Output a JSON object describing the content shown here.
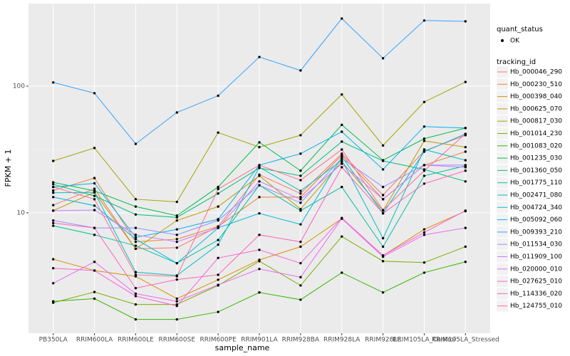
{
  "chart_data": {
    "type": "line",
    "log_y": true,
    "grid": true,
    "xlabel": "sample_name",
    "ylabel": "FPKM + 1",
    "categories": [
      "PB350LA",
      "RRIM600LA",
      "RRIM600LE",
      "RRIM600SE",
      "RRIM600PE",
      "RRIM901LA",
      "RRIM928BA",
      "RRIM928LA",
      "RRIM928LE",
      "RRIM105LA_Control",
      "RRIM105LA_Stressed"
    ],
    "ylim": [
      1.12,
      449
    ],
    "yticks": [
      10,
      100
    ],
    "point_legend_title": "quant_status",
    "point_legend_label": "OK",
    "point_color": "#000000",
    "legend_title": "tracking_id",
    "series": [
      {
        "name": "Hb_000046_290",
        "color": "#F8766D",
        "values": [
          11.5,
          15.5,
          5.2,
          5.3,
          7.8,
          20,
          14.2,
          29.3,
          13.8,
          30.8,
          41
        ]
      },
      {
        "name": "Hb_000230_510",
        "color": "#EA8331",
        "values": [
          15,
          18.8,
          5.9,
          6.2,
          7.8,
          13.3,
          13.3,
          28.5,
          12.8,
          23.8,
          30.4
        ]
      },
      {
        "name": "Hb_000398_040",
        "color": "#D89000",
        "values": [
          4.3,
          3.5,
          3.15,
          2.1,
          2.96,
          4.25,
          5.4,
          9.0,
          4.6,
          7.4,
          10.3
        ]
      },
      {
        "name": "Hb_000625_070",
        "color": "#C09B00",
        "values": [
          10.4,
          14.5,
          5.2,
          8.7,
          11.2,
          19.6,
          10.7,
          25.4,
          10.4,
          37,
          33
        ]
      },
      {
        "name": "Hb_000817_030",
        "color": "#A3A500",
        "values": [
          25.7,
          32.5,
          12.8,
          12.2,
          43,
          33,
          41,
          86,
          34,
          75,
          108
        ]
      },
      {
        "name": "Hb_001014_230",
        "color": "#7CAE00",
        "values": [
          1.95,
          2.37,
          1.89,
          1.89,
          2.67,
          4.15,
          2.67,
          6.5,
          4.15,
          4.05,
          5.4
        ]
      },
      {
        "name": "Hb_001083_020",
        "color": "#39B600",
        "values": [
          2.0,
          2.1,
          1.44,
          1.44,
          1.65,
          2.35,
          2.06,
          3.37,
          2.35,
          3.37,
          4.1
        ]
      },
      {
        "name": "Hb_001235_030",
        "color": "#00BB4E",
        "values": [
          17.4,
          14.9,
          11.2,
          9.5,
          16,
          36,
          21.5,
          49.5,
          26,
          38.5,
          46.7
        ]
      },
      {
        "name": "Hb_001360_050",
        "color": "#00BF7D",
        "values": [
          16.8,
          13.6,
          9.7,
          9.2,
          14.2,
          22.6,
          19.6,
          36.5,
          25.7,
          22,
          17.7
        ]
      },
      {
        "name": "Hb_001775_110",
        "color": "#00C1A3",
        "values": [
          7.9,
          6.7,
          5.5,
          4,
          6.1,
          16.5,
          10.4,
          16,
          5.4,
          19.6,
          23.5
        ]
      },
      {
        "name": "Hb_002471_080",
        "color": "#00BFC4",
        "values": [
          14.4,
          14.5,
          3.4,
          3.2,
          5.6,
          22.9,
          14.9,
          26,
          6.3,
          31.6,
          26
        ]
      },
      {
        "name": "Hb_004724_340",
        "color": "#00BAE0",
        "values": [
          13.3,
          11.4,
          6.2,
          4,
          7.6,
          9.9,
          8.1,
          27.7,
          9.9,
          30.4,
          42
        ]
      },
      {
        "name": "Hb_005092_060",
        "color": "#00B0F6",
        "values": [
          16,
          17.1,
          6.4,
          7.4,
          8.9,
          23.8,
          29.3,
          43.7,
          22,
          48,
          46.7
        ]
      },
      {
        "name": "Hb_009393_210",
        "color": "#35A2FF",
        "values": [
          107,
          88,
          35,
          62,
          84,
          170,
          133,
          342,
          166,
          330,
          325
        ]
      },
      {
        "name": "Hb_011534_030",
        "color": "#9590FF",
        "values": [
          8.7,
          7.6,
          7.6,
          6.7,
          8.7,
          16.5,
          12,
          27,
          16,
          23.8,
          23.8
        ]
      },
      {
        "name": "Hb_011909_100",
        "color": "#C77CFF",
        "values": [
          10.4,
          10.5,
          6.7,
          5.9,
          7.6,
          17.7,
          12.8,
          24.4,
          12.8,
          23.8,
          22.9
        ]
      },
      {
        "name": "Hb_020000_010",
        "color": "#E76BF3",
        "values": [
          2.78,
          4.1,
          2.3,
          2.0,
          2.7,
          3.6,
          3.1,
          9.0,
          4.5,
          6.7,
          7.6
        ]
      },
      {
        "name": "Hb_027625_010",
        "color": "#FA62DB",
        "values": [
          3.65,
          3.5,
          2.2,
          1.84,
          4.4,
          5.1,
          4.0,
          9.1,
          4.6,
          7.0,
          10.4
        ]
      },
      {
        "name": "Hb_114336_020",
        "color": "#FF62BC",
        "values": [
          8.3,
          7.6,
          2.54,
          2.97,
          3.24,
          6.7,
          5.9,
          22.9,
          9.9,
          17,
          21.5
        ]
      },
      {
        "name": "Hb_124755_010",
        "color": "#FF6C91",
        "values": [
          16,
          12.8,
          3.24,
          3.15,
          15.4,
          23.8,
          18.1,
          31.6,
          10.5,
          21.5,
          42
        ]
      }
    ]
  }
}
